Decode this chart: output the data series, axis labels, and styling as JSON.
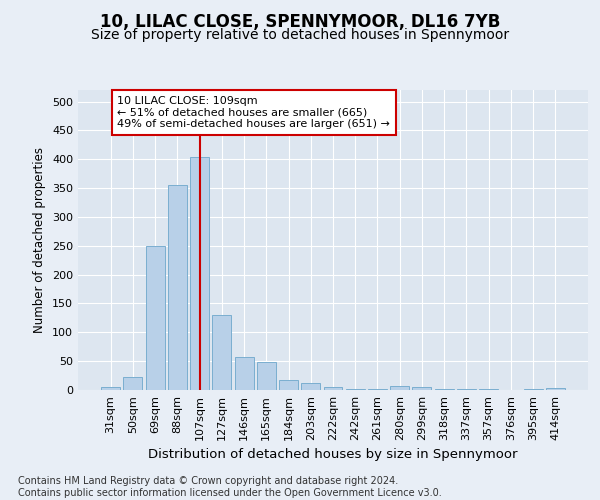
{
  "title": "10, LILAC CLOSE, SPENNYMOOR, DL16 7YB",
  "subtitle": "Size of property relative to detached houses in Spennymoor",
  "xlabel": "Distribution of detached houses by size in Spennymoor",
  "ylabel": "Number of detached properties",
  "categories": [
    "31sqm",
    "50sqm",
    "69sqm",
    "88sqm",
    "107sqm",
    "127sqm",
    "146sqm",
    "165sqm",
    "184sqm",
    "203sqm",
    "222sqm",
    "242sqm",
    "261sqm",
    "280sqm",
    "299sqm",
    "318sqm",
    "337sqm",
    "357sqm",
    "376sqm",
    "395sqm",
    "414sqm"
  ],
  "values": [
    5,
    22,
    250,
    355,
    403,
    130,
    57,
    48,
    17,
    13,
    6,
    2,
    1,
    7,
    6,
    2,
    2,
    1,
    0,
    2,
    3
  ],
  "bar_color": "#b8d0e8",
  "bar_edge_color": "#7aaed0",
  "vline_x_index": 4,
  "vline_color": "#cc0000",
  "annotation_line1": "10 LILAC CLOSE: 109sqm",
  "annotation_line2": "← 51% of detached houses are smaller (665)",
  "annotation_line3": "49% of semi-detached houses are larger (651) →",
  "annotation_box_color": "#cc0000",
  "ylim": [
    0,
    520
  ],
  "yticks": [
    0,
    50,
    100,
    150,
    200,
    250,
    300,
    350,
    400,
    450,
    500
  ],
  "bg_color": "#e8eef6",
  "plot_bg_color": "#dde6f0",
  "footnote": "Contains HM Land Registry data © Crown copyright and database right 2024.\nContains public sector information licensed under the Open Government Licence v3.0.",
  "title_fontsize": 12,
  "subtitle_fontsize": 10,
  "xlabel_fontsize": 9.5,
  "ylabel_fontsize": 8.5,
  "tick_fontsize": 8,
  "annotation_fontsize": 8,
  "footnote_fontsize": 7
}
